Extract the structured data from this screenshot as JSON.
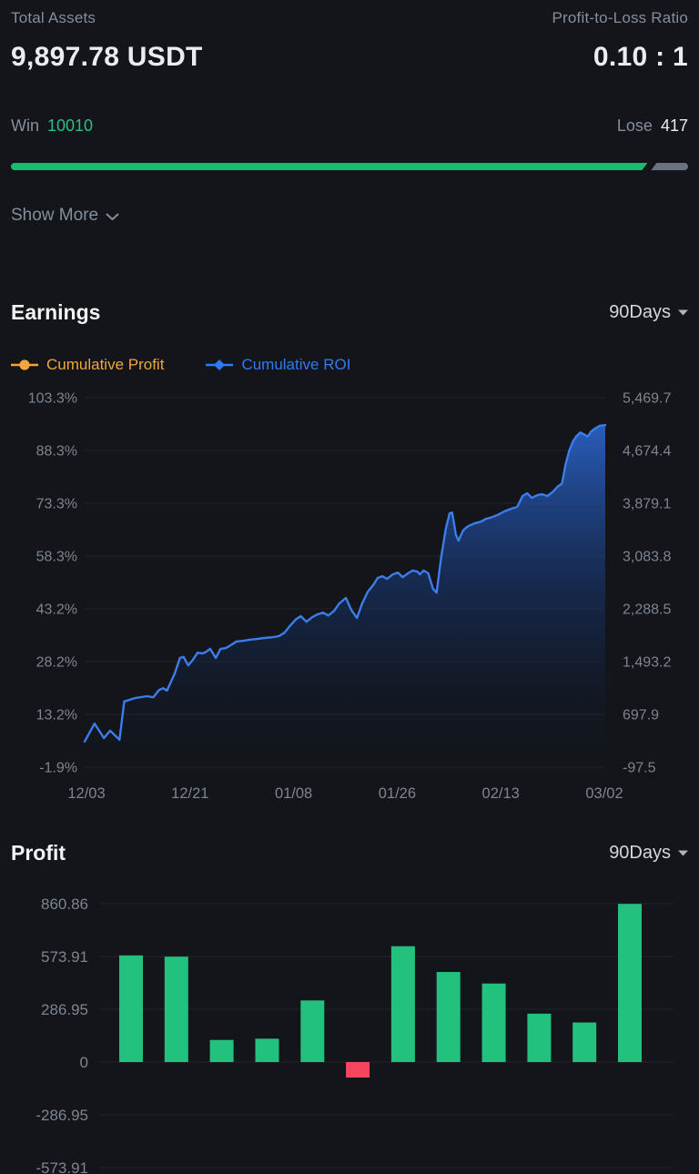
{
  "header": {
    "total_assets_label": "Total Assets",
    "total_assets_value": "9,897.78 USDT",
    "ratio_label": "Profit-to-Loss Ratio",
    "ratio_value": "0.10 : 1",
    "win_label": "Win",
    "win_value": "10010",
    "lose_label": "Lose",
    "lose_value": "417",
    "win_bar_pct": 94,
    "show_more_label": "Show More"
  },
  "earnings": {
    "title": "Earnings",
    "range_label": "90Days",
    "legend_items": [
      {
        "label": "Cumulative Profit",
        "color": "#F0A63C",
        "symbol": "circle"
      },
      {
        "label": "Cumulative ROI",
        "color": "#2F7BF5",
        "symbol": "diamond"
      }
    ]
  },
  "profit": {
    "title": "Profit",
    "range_label": "90Days"
  },
  "icons": {
    "chevron_down": "chevron-down-icon",
    "caret_down": "caret-down-icon"
  },
  "colors": {
    "background": "#13151A",
    "text_primary": "#EAECEF",
    "text_secondary": "#848E9C",
    "text_tick": "#7D8590",
    "green": "#2EBD85",
    "bar_green": "#22C17E",
    "red": "#F6465D",
    "line_blue": "#3B7DEB",
    "legend_orange": "#F0A63C",
    "legend_blue": "#2F7BF5",
    "progress_green": "#17BC6E",
    "progress_gray": "#6B7280"
  },
  "chart_data": [
    {
      "id": "earnings",
      "type": "area",
      "title": "Earnings",
      "x_ticks": [
        "12/03",
        "12/21",
        "01/08",
        "01/26",
        "02/13",
        "03/02"
      ],
      "left_axis": {
        "unit": "%",
        "ticks": [
          "103.3%",
          "88.3%",
          "73.3%",
          "58.3%",
          "43.2%",
          "28.2%",
          "13.2%",
          "-1.9%"
        ]
      },
      "right_axis": {
        "ticks": [
          "5,469.7",
          "4,674.4",
          "3,879.1",
          "3,083.8",
          "2,288.5",
          "1,493.2",
          "697.9",
          "-97.5"
        ]
      },
      "ylim_pct": [
        -1.9,
        103.3
      ],
      "right_ylim": [
        -97.5,
        5469.7
      ],
      "grid": true,
      "legend_position": "top-left",
      "series": [
        {
          "name": "Cumulative Profit",
          "axis": "right",
          "note": "overlaps ROI line"
        },
        {
          "name": "Cumulative ROI",
          "axis": "left",
          "points": [
            [
              0,
              5.4
            ],
            [
              0.019,
              10.5
            ],
            [
              0.037,
              6.4
            ],
            [
              0.049,
              8.5
            ],
            [
              0.067,
              5.9
            ],
            [
              0.076,
              16.8
            ],
            [
              0.097,
              17.8
            ],
            [
              0.12,
              18.3
            ],
            [
              0.132,
              18
            ],
            [
              0.143,
              20.1
            ],
            [
              0.151,
              20.6
            ],
            [
              0.158,
              19.9
            ],
            [
              0.173,
              24.8
            ],
            [
              0.183,
              29.2
            ],
            [
              0.19,
              29.5
            ],
            [
              0.199,
              27.1
            ],
            [
              0.208,
              28.7
            ],
            [
              0.217,
              30.7
            ],
            [
              0.227,
              30.5
            ],
            [
              0.234,
              31
            ],
            [
              0.241,
              31.8
            ],
            [
              0.252,
              29.2
            ],
            [
              0.261,
              31.8
            ],
            [
              0.271,
              32
            ],
            [
              0.28,
              32.8
            ],
            [
              0.292,
              33.9
            ],
            [
              0.305,
              34.1
            ],
            [
              0.317,
              34.4
            ],
            [
              0.331,
              34.6
            ],
            [
              0.345,
              34.9
            ],
            [
              0.361,
              35.1
            ],
            [
              0.373,
              35.4
            ],
            [
              0.384,
              36.4
            ],
            [
              0.394,
              38.3
            ],
            [
              0.405,
              40.1
            ],
            [
              0.415,
              41.1
            ],
            [
              0.426,
              39.5
            ],
            [
              0.437,
              40.8
            ],
            [
              0.447,
              41.6
            ],
            [
              0.458,
              42.1
            ],
            [
              0.468,
              41.3
            ],
            [
              0.479,
              42.6
            ],
            [
              0.489,
              44.7
            ],
            [
              0.502,
              46.3
            ],
            [
              0.512,
              42.9
            ],
            [
              0.523,
              40.6
            ],
            [
              0.533,
              44.7
            ],
            [
              0.544,
              48.1
            ],
            [
              0.554,
              49.9
            ],
            [
              0.563,
              52
            ],
            [
              0.572,
              52.5
            ],
            [
              0.581,
              51.7
            ],
            [
              0.592,
              53
            ],
            [
              0.602,
              53.5
            ],
            [
              0.611,
              52.2
            ],
            [
              0.621,
              53.3
            ],
            [
              0.63,
              54.1
            ],
            [
              0.639,
              53.8
            ],
            [
              0.644,
              53
            ],
            [
              0.651,
              54.1
            ],
            [
              0.66,
              53.3
            ],
            [
              0.669,
              48.9
            ],
            [
              0.676,
              47.8
            ],
            [
              0.685,
              58
            ],
            [
              0.694,
              66.2
            ],
            [
              0.701,
              70.4
            ],
            [
              0.706,
              70.6
            ],
            [
              0.713,
              64.4
            ],
            [
              0.718,
              62.6
            ],
            [
              0.727,
              65.5
            ],
            [
              0.736,
              66.7
            ],
            [
              0.748,
              67.5
            ],
            [
              0.761,
              68
            ],
            [
              0.771,
              68.8
            ],
            [
              0.783,
              69.3
            ],
            [
              0.796,
              70.1
            ],
            [
              0.806,
              70.9
            ],
            [
              0.819,
              71.7
            ],
            [
              0.831,
              72.2
            ],
            [
              0.841,
              75.3
            ],
            [
              0.85,
              76.1
            ],
            [
              0.859,
              74.8
            ],
            [
              0.87,
              75.6
            ],
            [
              0.879,
              75.8
            ],
            [
              0.889,
              75.3
            ],
            [
              0.9,
              76.6
            ],
            [
              0.908,
              77.9
            ],
            [
              0.917,
              78.9
            ],
            [
              0.924,
              84.4
            ],
            [
              0.931,
              88.3
            ],
            [
              0.938,
              90.9
            ],
            [
              0.945,
              92.4
            ],
            [
              0.952,
              93.4
            ],
            [
              0.959,
              92.9
            ],
            [
              0.966,
              92.2
            ],
            [
              0.973,
              93.7
            ],
            [
              0.98,
              94.5
            ],
            [
              0.989,
              95.3
            ],
            [
              1,
              95.5
            ]
          ]
        }
      ]
    },
    {
      "id": "profit",
      "type": "bar",
      "title": "Profit",
      "y_ticks": [
        "860.86",
        "573.91",
        "286.95",
        "0",
        "-286.95",
        "-573.91"
      ],
      "ylim": [
        -573.91,
        860.86
      ],
      "grid": true,
      "values": [
        580,
        573,
        120,
        127,
        335,
        -84,
        630,
        490,
        427,
        263,
        215,
        860
      ],
      "bar_colors": {
        "positive": "#22C17E",
        "negative": "#F6465D"
      }
    }
  ]
}
